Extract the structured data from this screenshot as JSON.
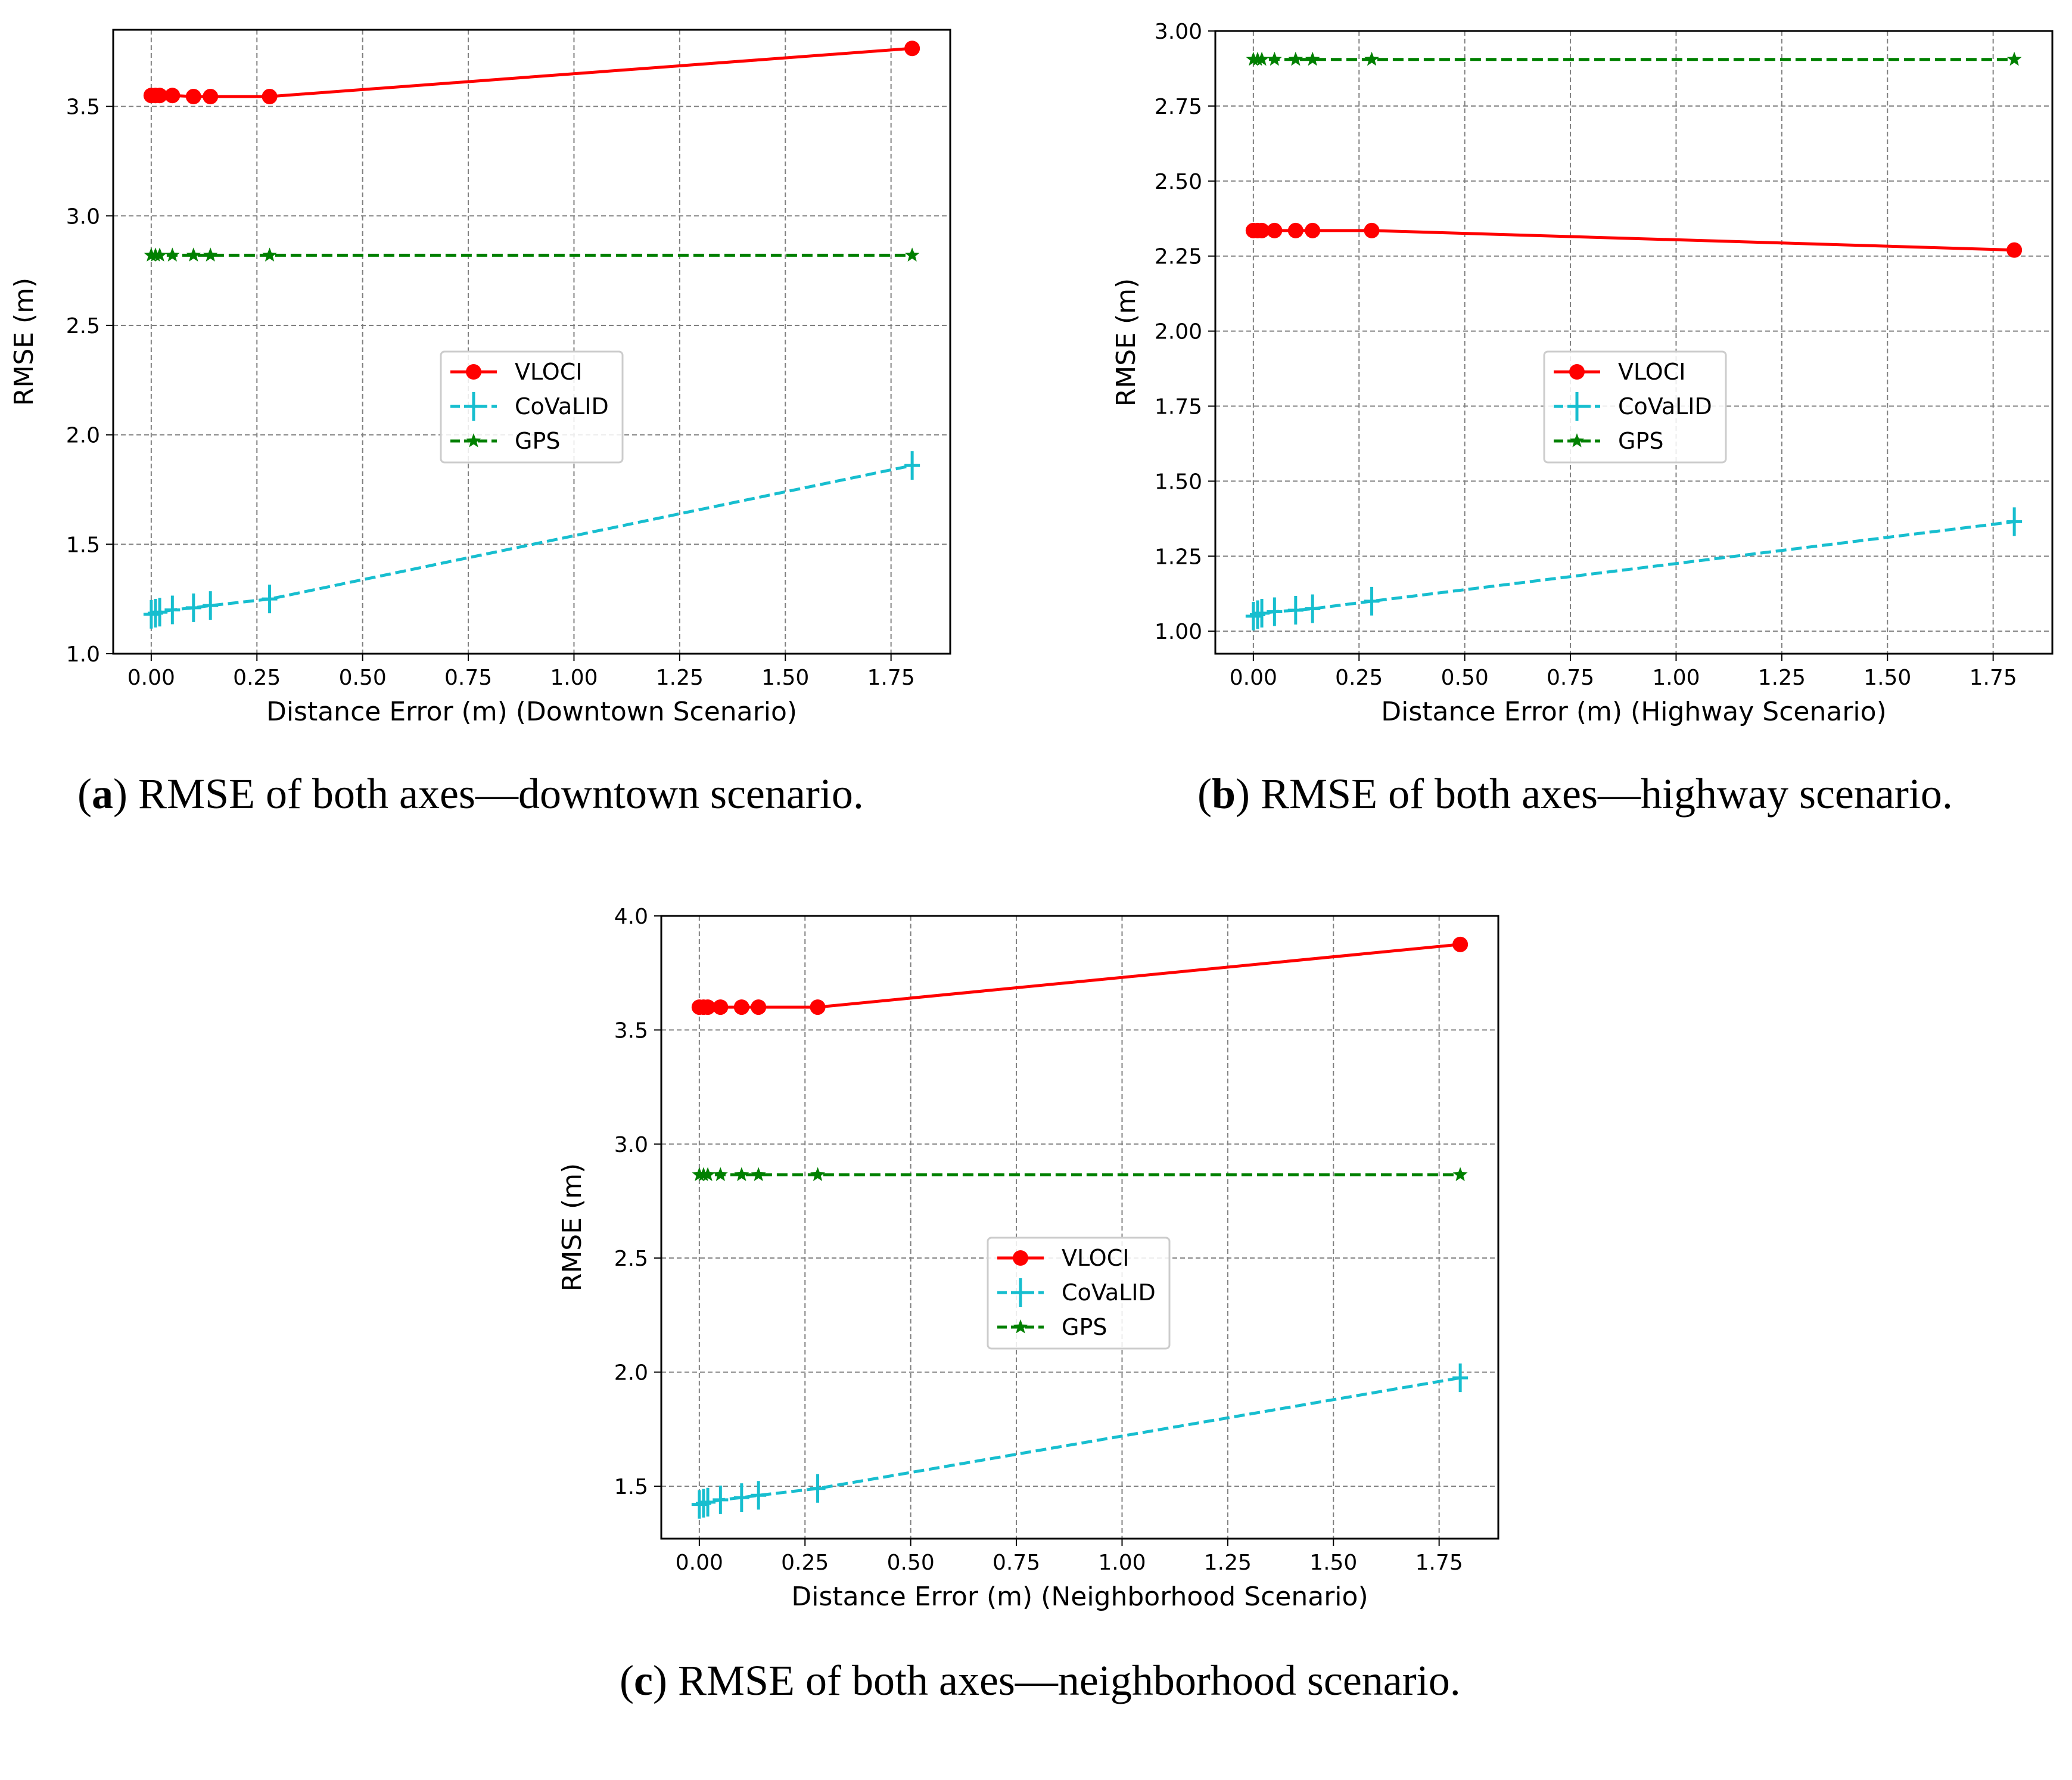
{
  "chart_data": [
    {
      "type": "line",
      "panel": "a",
      "xlabel": "Distance Error (m) (Downtown Scenario)",
      "ylabel": "RMSE (m)",
      "xlim": [
        -0.09,
        1.89
      ],
      "ylim": [
        1.0,
        3.85
      ],
      "xticks": [
        "0.00",
        "0.25",
        "0.50",
        "0.75",
        "1.00",
        "1.25",
        "1.50",
        "1.75"
      ],
      "yticks": [
        "1.0",
        "1.5",
        "2.0",
        "2.5",
        "3.0",
        "3.5"
      ],
      "x": [
        0.0,
        0.01,
        0.02,
        0.05,
        0.1,
        0.14,
        0.28,
        1.8
      ],
      "legend_position": "center",
      "series": [
        {
          "name": "VLOCI",
          "color": "#ff0000",
          "marker": "circle",
          "dash": "solid",
          "values": [
            3.55,
            3.55,
            3.55,
            3.55,
            3.545,
            3.545,
            3.545,
            3.765
          ]
        },
        {
          "name": "CoVaLID",
          "color": "#17becf",
          "marker": "plus",
          "dash": "dashed",
          "values": [
            1.18,
            1.185,
            1.19,
            1.2,
            1.21,
            1.22,
            1.25,
            1.86
          ]
        },
        {
          "name": "GPS",
          "color": "#008000",
          "marker": "star",
          "dash": "dashed",
          "values": [
            2.82,
            2.82,
            2.82,
            2.82,
            2.82,
            2.82,
            2.82,
            2.82
          ]
        }
      ]
    },
    {
      "type": "line",
      "panel": "b",
      "xlabel": "Distance Error (m) (Highway Scenario)",
      "ylabel": "RMSE (m)",
      "xlim": [
        -0.09,
        1.89
      ],
      "ylim": [
        0.925,
        3.0
      ],
      "xticks": [
        "0.00",
        "0.25",
        "0.50",
        "0.75",
        "1.00",
        "1.25",
        "1.50",
        "1.75"
      ],
      "yticks": [
        "1.00",
        "1.25",
        "1.50",
        "1.75",
        "2.00",
        "2.25",
        "2.50",
        "2.75",
        "3.00"
      ],
      "x": [
        0.0,
        0.01,
        0.02,
        0.05,
        0.1,
        0.14,
        0.28,
        1.8
      ],
      "legend_position": "center",
      "series": [
        {
          "name": "VLOCI",
          "color": "#ff0000",
          "marker": "circle",
          "dash": "solid",
          "values": [
            2.335,
            2.335,
            2.335,
            2.335,
            2.335,
            2.335,
            2.335,
            2.27
          ]
        },
        {
          "name": "CoVaLID",
          "color": "#17becf",
          "marker": "plus",
          "dash": "dashed",
          "values": [
            1.05,
            1.055,
            1.06,
            1.065,
            1.07,
            1.075,
            1.1,
            1.365
          ]
        },
        {
          "name": "GPS",
          "color": "#008000",
          "marker": "star",
          "dash": "dashed",
          "values": [
            2.905,
            2.905,
            2.905,
            2.905,
            2.905,
            2.905,
            2.905,
            2.905
          ]
        }
      ]
    },
    {
      "type": "line",
      "panel": "c",
      "xlabel": "Distance Error (m) (Neighborhood Scenario)",
      "ylabel": "RMSE (m)",
      "xlim": [
        -0.09,
        1.89
      ],
      "ylim": [
        1.27,
        4.0
      ],
      "xticks": [
        "0.00",
        "0.25",
        "0.50",
        "0.75",
        "1.00",
        "1.25",
        "1.50",
        "1.75"
      ],
      "yticks": [
        "1.5",
        "2.0",
        "2.5",
        "3.0",
        "3.5",
        "4.0"
      ],
      "x": [
        0.0,
        0.01,
        0.02,
        0.05,
        0.1,
        0.14,
        0.28,
        1.8
      ],
      "legend_position": "center",
      "series": [
        {
          "name": "VLOCI",
          "color": "#ff0000",
          "marker": "circle",
          "dash": "solid",
          "values": [
            3.6,
            3.6,
            3.6,
            3.6,
            3.6,
            3.6,
            3.6,
            3.875
          ]
        },
        {
          "name": "CoVaLID",
          "color": "#17becf",
          "marker": "plus",
          "dash": "dashed",
          "values": [
            1.42,
            1.425,
            1.43,
            1.44,
            1.45,
            1.46,
            1.49,
            1.975
          ]
        },
        {
          "name": "GPS",
          "color": "#008000",
          "marker": "star",
          "dash": "dashed",
          "values": [
            2.865,
            2.865,
            2.865,
            2.865,
            2.865,
            2.865,
            2.865,
            2.865
          ]
        }
      ]
    }
  ],
  "captions": {
    "a": {
      "label": "a",
      "text": "RMSE of both axes—downtown scenario."
    },
    "b": {
      "label": "b",
      "text": "RMSE of both axes—highway scenario."
    },
    "c": {
      "label": "c",
      "text": "RMSE of both axes—neighborhood scenario."
    }
  }
}
